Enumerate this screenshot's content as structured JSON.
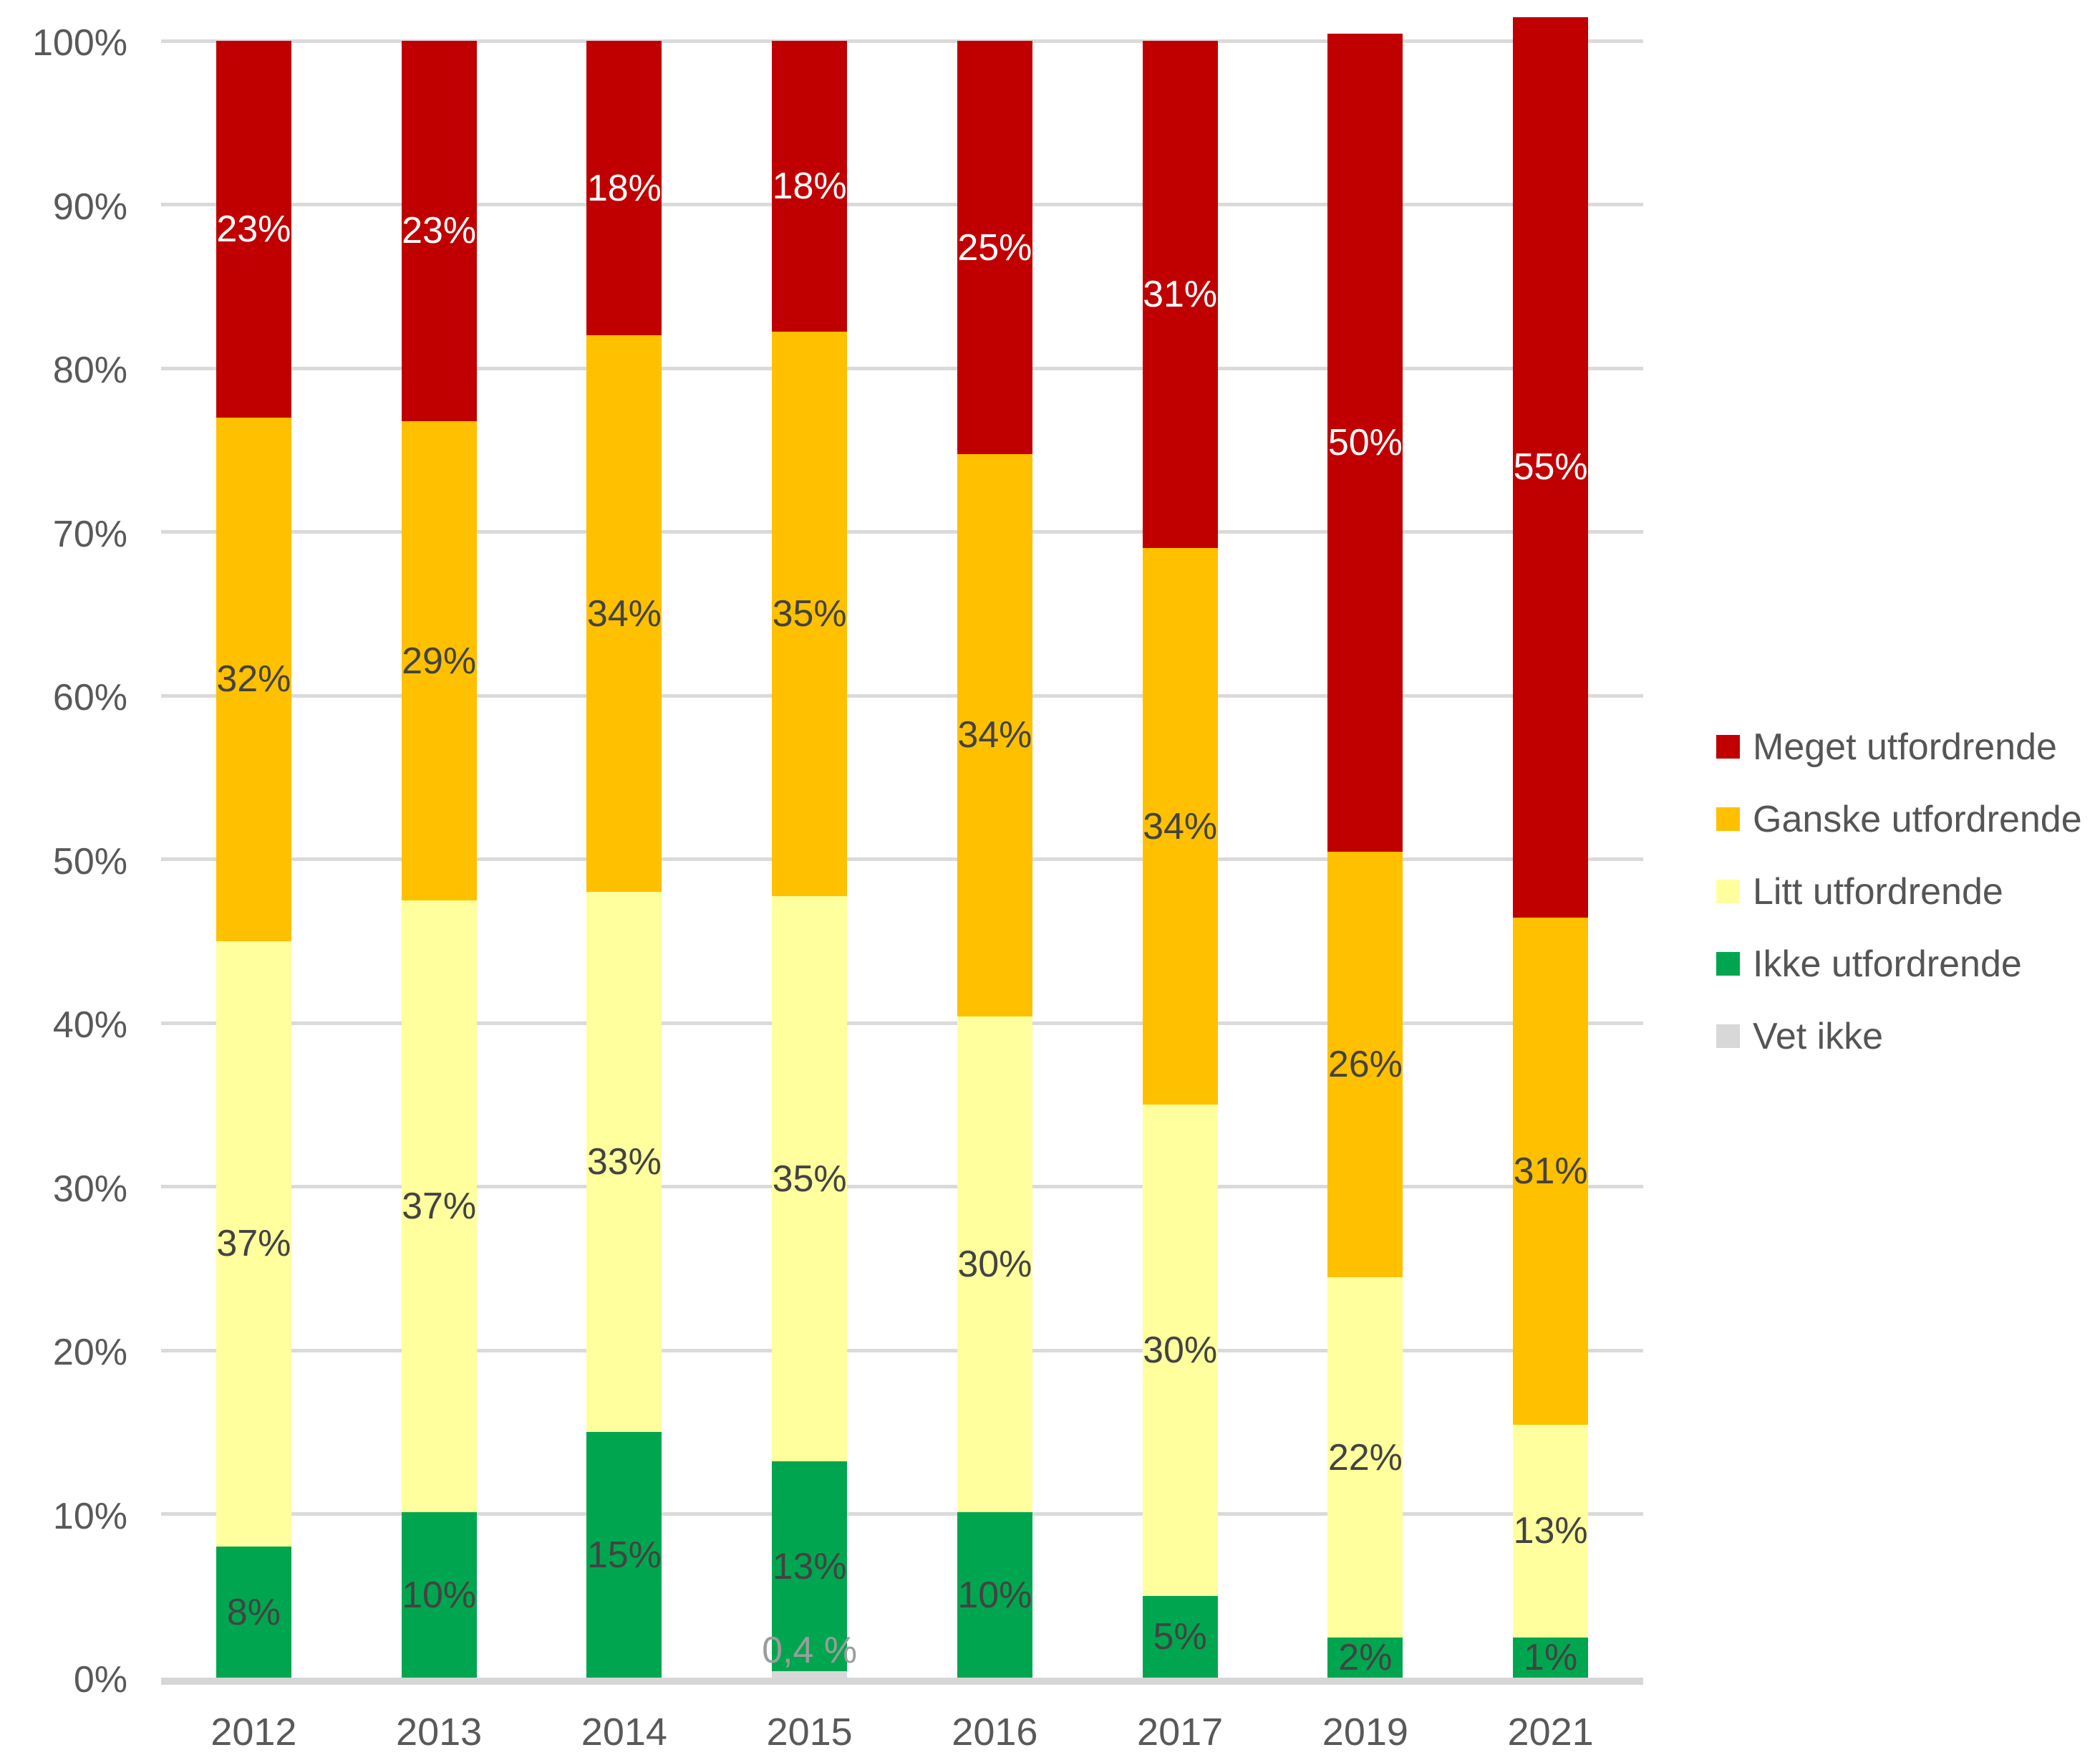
{
  "chart_data": {
    "type": "bar",
    "subtype": "stacked-100-percent",
    "title": "",
    "xlabel": "",
    "ylabel": "",
    "grid": true,
    "legend_position": "right",
    "categories": [
      "2012",
      "2013",
      "2014",
      "2015",
      "2016",
      "2017",
      "2019",
      "2021"
    ],
    "series": [
      {
        "name": "Vet ikke",
        "color": "#D8D8D8",
        "label_color": "#9C9C9C",
        "values": [
          0,
          0,
          0,
          0.4,
          0,
          0,
          0,
          0
        ],
        "labels": [
          "",
          "",
          "",
          "0,4 %",
          "",
          "",
          "",
          ""
        ]
      },
      {
        "name": "Ikke utfordrende",
        "color": "#00A64F",
        "label_color": "#434343",
        "values": [
          8,
          10,
          15,
          13,
          10,
          5,
          2,
          1
        ],
        "labels": [
          "8%",
          "10%",
          "15%",
          "13%",
          "10%",
          "5%",
          "2%",
          "1%"
        ]
      },
      {
        "name": "Litt utfordrende",
        "color": "#FFFF9E",
        "label_color": "#434343",
        "values": [
          37,
          37,
          33,
          35,
          30,
          30,
          22,
          13
        ],
        "labels": [
          "37%",
          "37%",
          "33%",
          "35%",
          "30%",
          "30%",
          "22%",
          "13%"
        ]
      },
      {
        "name": "Ganske utfordrende",
        "color": "#FFC000",
        "label_color": "#434343",
        "values": [
          32,
          29,
          34,
          35,
          34,
          34,
          26,
          31
        ],
        "labels": [
          "32%",
          "29%",
          "34%",
          "35%",
          "34%",
          "34%",
          "26%",
          "31%"
        ]
      },
      {
        "name": "Meget utfordrende",
        "color": "#C00000",
        "label_color": "#FFFFFF",
        "values": [
          23,
          23,
          18,
          18,
          25,
          31,
          50,
          55
        ],
        "labels": [
          "23%",
          "23%",
          "18%",
          "18%",
          "25%",
          "31%",
          "50%",
          "55%"
        ]
      }
    ],
    "legend": [
      {
        "label": "Meget utfordrende",
        "color": "#C00000"
      },
      {
        "label": "Ganske utfordrende",
        "color": "#FFC000"
      },
      {
        "label": "Litt utfordrende",
        "color": "#FFFF9E"
      },
      {
        "label": "Ikke utfordrende",
        "color": "#00A64F"
      },
      {
        "label": "Vet ikke",
        "color": "#D8D8D8"
      }
    ],
    "y_axis": {
      "min": 0,
      "max": 100,
      "tick_step": 10,
      "ticks": [
        "0%",
        "10%",
        "20%",
        "30%",
        "40%",
        "50%",
        "60%",
        "70%",
        "80%",
        "90%",
        "100%"
      ]
    }
  },
  "colors": {
    "gridline": "#DADADA",
    "baseline": "#D6D6D6",
    "axis_text": "#595959",
    "legend_text": "#555555",
    "background": "#FFFFFF"
  }
}
